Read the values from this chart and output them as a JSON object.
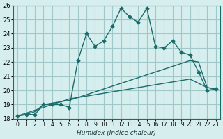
{
  "xlabel": "Humidex (Indice chaleur)",
  "background_color": "#d6eeed",
  "grid_color": "#a0c8c8",
  "line_color": "#1a6b6b",
  "x_values": [
    0,
    1,
    2,
    3,
    4,
    5,
    6,
    7,
    8,
    9,
    10,
    11,
    12,
    13,
    14,
    15,
    16,
    17,
    18,
    19,
    20,
    21,
    22,
    23
  ],
  "line1_y": [
    18.2,
    18.3,
    18.3,
    19.0,
    19.0,
    19.0,
    18.8,
    22.1,
    24.0,
    23.1,
    23.5,
    24.5,
    25.8,
    25.2,
    24.8,
    25.8,
    23.1,
    23.0,
    23.5,
    22.7,
    22.5,
    21.3,
    20.0,
    20.1
  ],
  "line2_y": [
    18.2,
    18.3,
    18.5,
    19.0,
    19.1,
    19.2,
    19.3,
    19.5,
    19.7,
    19.9,
    20.1,
    20.3,
    20.5,
    20.7,
    20.9,
    21.1,
    21.3,
    21.5,
    21.7,
    21.9,
    22.1,
    22.0,
    20.2,
    20.1
  ],
  "line3_y": [
    18.2,
    18.4,
    18.6,
    18.8,
    19.0,
    19.2,
    19.4,
    19.5,
    19.6,
    19.7,
    19.8,
    19.9,
    20.0,
    20.1,
    20.2,
    20.3,
    20.4,
    20.5,
    20.6,
    20.7,
    20.8,
    20.5,
    20.2,
    20.1
  ],
  "ylim": [
    18,
    26
  ],
  "xlim": [
    0,
    23
  ],
  "yticks": [
    18,
    19,
    20,
    21,
    22,
    23,
    24,
    25,
    26
  ],
  "xtick_labels": [
    "0",
    "1",
    "2",
    "3",
    "4",
    "5",
    "6",
    "7",
    "8",
    "9",
    "10",
    "11",
    "12",
    "13",
    "14",
    "15",
    "16",
    "17",
    "18",
    "19",
    "20",
    "21",
    "22",
    "23"
  ]
}
